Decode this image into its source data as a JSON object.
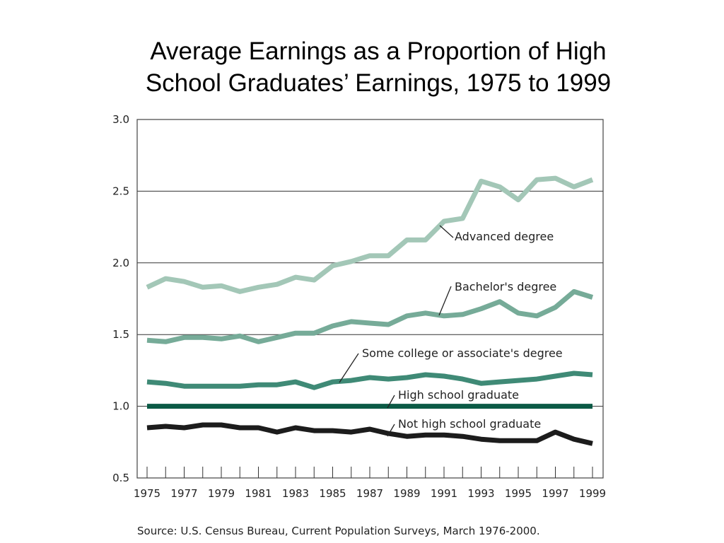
{
  "title": {
    "line1": "Average Earnings as a Proportion of High",
    "line2": "School Graduates’ Earnings, 1975 to 1999"
  },
  "source": "Source: U.S. Census Bureau, Current Population Surveys, March 1976-2000.",
  "chart_data": {
    "type": "line",
    "title": "Average Earnings as a Proportion of High School Graduates’ Earnings, 1975 to 1999",
    "xlabel": "",
    "ylabel": "",
    "xlim": [
      1975,
      1999
    ],
    "ylim": [
      0.5,
      3.0
    ],
    "yticks": [
      0.5,
      1.0,
      1.5,
      2.0,
      2.5,
      3.0
    ],
    "ytick_labels": [
      "0.5",
      "1.0",
      "1.5",
      "2.0",
      "2.5",
      "3.0"
    ],
    "xtick_labels": [
      "1975",
      "1977",
      "1979",
      "1981",
      "1983",
      "1985",
      "1987",
      "1989",
      "1991",
      "1993",
      "1995",
      "1997",
      "1999"
    ],
    "grid": "horizontal",
    "legend": "inline labels",
    "x": [
      1975,
      1976,
      1977,
      1978,
      1979,
      1980,
      1981,
      1982,
      1983,
      1984,
      1985,
      1986,
      1987,
      1988,
      1989,
      1990,
      1991,
      1992,
      1993,
      1994,
      1995,
      1996,
      1997,
      1998,
      1999
    ],
    "series": [
      {
        "name": "Advanced degree",
        "color": "#a3c7b7",
        "values": [
          1.83,
          1.89,
          1.87,
          1.83,
          1.84,
          1.8,
          1.83,
          1.85,
          1.9,
          1.88,
          1.98,
          2.01,
          2.05,
          2.05,
          2.16,
          2.16,
          2.29,
          2.31,
          2.57,
          2.53,
          2.44,
          2.58,
          2.59,
          2.53,
          2.58
        ]
      },
      {
        "name": "Bachelor's degree",
        "color": "#76ab98",
        "values": [
          1.46,
          1.45,
          1.48,
          1.48,
          1.47,
          1.49,
          1.45,
          1.48,
          1.51,
          1.51,
          1.56,
          1.59,
          1.58,
          1.57,
          1.63,
          1.65,
          1.63,
          1.64,
          1.68,
          1.73,
          1.65,
          1.63,
          1.69,
          1.8,
          1.76
        ]
      },
      {
        "name": "Some college or associate's degree",
        "color": "#3f8a76",
        "values": [
          1.17,
          1.16,
          1.14,
          1.14,
          1.14,
          1.14,
          1.15,
          1.15,
          1.17,
          1.13,
          1.17,
          1.18,
          1.2,
          1.19,
          1.2,
          1.22,
          1.21,
          1.19,
          1.16,
          1.17,
          1.18,
          1.19,
          1.21,
          1.23,
          1.22
        ]
      },
      {
        "name": "High school graduate",
        "color": "#0b5a45",
        "values": [
          1.0,
          1.0,
          1.0,
          1.0,
          1.0,
          1.0,
          1.0,
          1.0,
          1.0,
          1.0,
          1.0,
          1.0,
          1.0,
          1.0,
          1.0,
          1.0,
          1.0,
          1.0,
          1.0,
          1.0,
          1.0,
          1.0,
          1.0,
          1.0,
          1.0
        ]
      },
      {
        "name": "Not high school graduate",
        "color": "#1c1c1c",
        "values": [
          0.85,
          0.86,
          0.85,
          0.87,
          0.87,
          0.85,
          0.85,
          0.82,
          0.85,
          0.83,
          0.83,
          0.82,
          0.84,
          0.81,
          0.79,
          0.8,
          0.8,
          0.79,
          0.77,
          0.76,
          0.76,
          0.76,
          0.82,
          0.77,
          0.74
        ]
      }
    ]
  }
}
